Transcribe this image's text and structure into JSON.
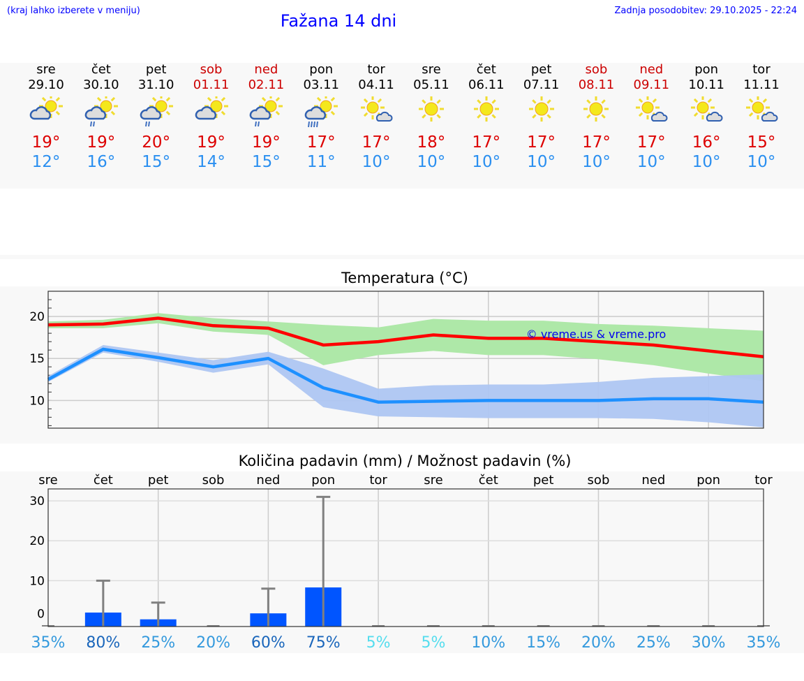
{
  "header": {
    "hint": "(kraj lahko izberete v meniju)",
    "title": "Fažana 14 dni",
    "updated": "Zadnja posodobitev: 29.10.2025 - 22:24"
  },
  "colors": {
    "weekday": "#000000",
    "weekend": "#cc0000",
    "tmax": "#dd0000",
    "tmin": "#2a8ff0",
    "max_line": "#ff0000",
    "min_line": "#1e90ff",
    "max_band": "#aee8a8",
    "min_band": "#aec6f2",
    "bar": "#0055ff",
    "err": "#808080"
  },
  "days": [
    {
      "name": "sre",
      "date": "29.10",
      "weekend": false,
      "icon": "partly-cloudy",
      "max": "19°",
      "min": "12°"
    },
    {
      "name": "čet",
      "date": "30.10",
      "weekend": false,
      "icon": "partly-cloudy-light-rain",
      "max": "19°",
      "min": "16°"
    },
    {
      "name": "pet",
      "date": "31.10",
      "weekend": false,
      "icon": "partly-cloudy-light-rain",
      "max": "20°",
      "min": "15°"
    },
    {
      "name": "sob",
      "date": "01.11",
      "weekend": true,
      "icon": "partly-cloudy",
      "max": "19°",
      "min": "14°"
    },
    {
      "name": "ned",
      "date": "02.11",
      "weekend": true,
      "icon": "partly-cloudy-light-rain",
      "max": "19°",
      "min": "15°"
    },
    {
      "name": "pon",
      "date": "03.11",
      "weekend": false,
      "icon": "partly-cloudy-rain",
      "max": "17°",
      "min": "11°"
    },
    {
      "name": "tor",
      "date": "04.11",
      "weekend": false,
      "icon": "sun-small-cloud",
      "max": "17°",
      "min": "10°"
    },
    {
      "name": "sre",
      "date": "05.11",
      "weekend": false,
      "icon": "sunny",
      "max": "18°",
      "min": "10°"
    },
    {
      "name": "čet",
      "date": "06.11",
      "weekend": false,
      "icon": "sunny",
      "max": "17°",
      "min": "10°"
    },
    {
      "name": "pet",
      "date": "07.11",
      "weekend": false,
      "icon": "sunny",
      "max": "17°",
      "min": "10°"
    },
    {
      "name": "sob",
      "date": "08.11",
      "weekend": true,
      "icon": "sunny",
      "max": "17°",
      "min": "10°"
    },
    {
      "name": "ned",
      "date": "09.11",
      "weekend": true,
      "icon": "sun-small-cloud",
      "max": "17°",
      "min": "10°"
    },
    {
      "name": "pon",
      "date": "10.11",
      "weekend": false,
      "icon": "sun-small-cloud",
      "max": "16°",
      "min": "10°"
    },
    {
      "name": "tor",
      "date": "11.11",
      "weekend": false,
      "icon": "sun-small-cloud",
      "max": "15°",
      "min": "10°"
    }
  ],
  "chart_data": [
    {
      "type": "line",
      "title": "Temperatura (°C)",
      "ylim": [
        6.7,
        23
      ],
      "yticks": [
        10,
        15,
        20
      ],
      "grid": true,
      "watermark": "© vreme.us & vreme.pro",
      "series": [
        {
          "name": "max",
          "values": [
            19,
            19.1,
            19.8,
            18.9,
            18.6,
            16.6,
            17,
            17.8,
            17.4,
            17.4,
            17,
            16.6,
            15.9,
            15.2
          ],
          "band_low": [
            18.6,
            18.6,
            19.2,
            18.2,
            17.8,
            14.2,
            15.4,
            15.9,
            15.4,
            15.4,
            14.9,
            14.2,
            13.2,
            12.3
          ],
          "band_high": [
            19.4,
            19.6,
            20.4,
            19.8,
            19.4,
            19,
            18.7,
            19.7,
            19.5,
            19.5,
            19.1,
            18.9,
            18.6,
            18.3
          ]
        },
        {
          "name": "min",
          "values": [
            12.5,
            16.1,
            15.1,
            14,
            15,
            11.5,
            9.8,
            9.9,
            10,
            10,
            10,
            10.2,
            10.2,
            9.8
          ],
          "band_low": [
            12.2,
            15.7,
            14.6,
            13.3,
            14.3,
            9.2,
            8.1,
            8,
            7.9,
            7.9,
            7.9,
            7.8,
            7.4,
            6.8
          ],
          "band_high": [
            12.9,
            16.6,
            15.7,
            14.8,
            15.8,
            13.8,
            11.4,
            11.8,
            11.9,
            11.9,
            12.2,
            12.7,
            12.9,
            13.1
          ]
        }
      ]
    },
    {
      "type": "bar",
      "title": "Količina padavin (mm) / Možnost padavin (%)",
      "ylim": [
        -1.5,
        33
      ],
      "yticks": [
        0,
        10,
        20,
        30
      ],
      "grid": true,
      "categories": [
        "sre",
        "čet",
        "pet",
        "sob",
        "ned",
        "pon",
        "tor",
        "sre",
        "čet",
        "pet",
        "sob",
        "ned",
        "pon",
        "tor"
      ],
      "values": [
        0,
        2,
        0.3,
        0,
        1.8,
        8.3,
        0,
        0,
        0,
        0,
        0,
        0,
        0,
        0
      ],
      "err_high": [
        0,
        10,
        4.5,
        0,
        8,
        31,
        0,
        0,
        0,
        0,
        0,
        0,
        0,
        0
      ],
      "probability": [
        "35%",
        "80%",
        "25%",
        "20%",
        "60%",
        "75%",
        "5%",
        "5%",
        "10%",
        "15%",
        "20%",
        "25%",
        "30%",
        "35%"
      ],
      "probability_colors": [
        "#3399dd",
        "#1a66bb",
        "#3399dd",
        "#3399dd",
        "#1a66bb",
        "#1a66bb",
        "#55ddee",
        "#55ddee",
        "#3399dd",
        "#3399dd",
        "#3399dd",
        "#3399dd",
        "#3399dd",
        "#3399dd"
      ]
    }
  ]
}
